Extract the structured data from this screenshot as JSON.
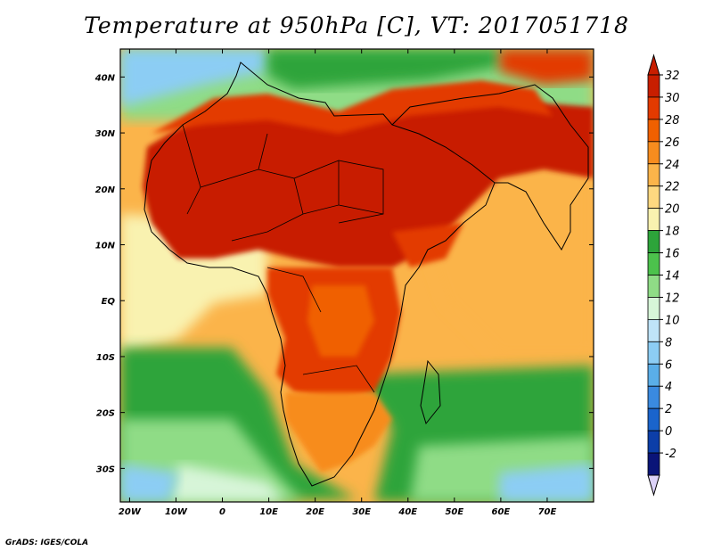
{
  "title": "Temperature at 950hPa [C], VT: 2017051718",
  "credit": "GrADS: IGES/COLA",
  "lat_ticks": [
    {
      "label": "40N",
      "lat": 40
    },
    {
      "label": "30N",
      "lat": 30
    },
    {
      "label": "20N",
      "lat": 20
    },
    {
      "label": "10N",
      "lat": 10
    },
    {
      "label": "EQ",
      "lat": 0
    },
    {
      "label": "10S",
      "lat": -10
    },
    {
      "label": "20S",
      "lat": -20
    },
    {
      "label": "30S",
      "lat": -30
    }
  ],
  "lon_ticks": [
    {
      "label": "20W",
      "lon": -20
    },
    {
      "label": "10W",
      "lon": -10
    },
    {
      "label": "0",
      "lon": 0
    },
    {
      "label": "10E",
      "lon": 10
    },
    {
      "label": "20E",
      "lon": 20
    },
    {
      "label": "30E",
      "lon": 30
    },
    {
      "label": "40E",
      "lon": 40
    },
    {
      "label": "50E",
      "lon": 50
    },
    {
      "label": "60E",
      "lon": 60
    },
    {
      "label": "70E",
      "lon": 70
    }
  ],
  "map_extent": {
    "lon_min": -22,
    "lon_max": 80,
    "lat_min": -36,
    "lat_max": 45
  },
  "colorbar": {
    "labels": [
      "32",
      "30",
      "28",
      "26",
      "24",
      "22",
      "20",
      "18",
      "16",
      "14",
      "12",
      "10",
      "8",
      "6",
      "4",
      "2",
      "0",
      "-2"
    ],
    "colors": [
      "#c81e00",
      "#e33a00",
      "#f06000",
      "#f78c1e",
      "#fbb44a",
      "#fdd880",
      "#f9f2b0",
      "#2da43a",
      "#4cc24c",
      "#8fdc86",
      "#d7f5d8",
      "#bfe4f8",
      "#8ccdf4",
      "#5aaee8",
      "#3a8ae0",
      "#1a64cc",
      "#0c3ea8",
      "#0a1478"
    ],
    "top_arrow_color": "#c81e00",
    "bottom_arrow_color": "#dcd2f8"
  }
}
